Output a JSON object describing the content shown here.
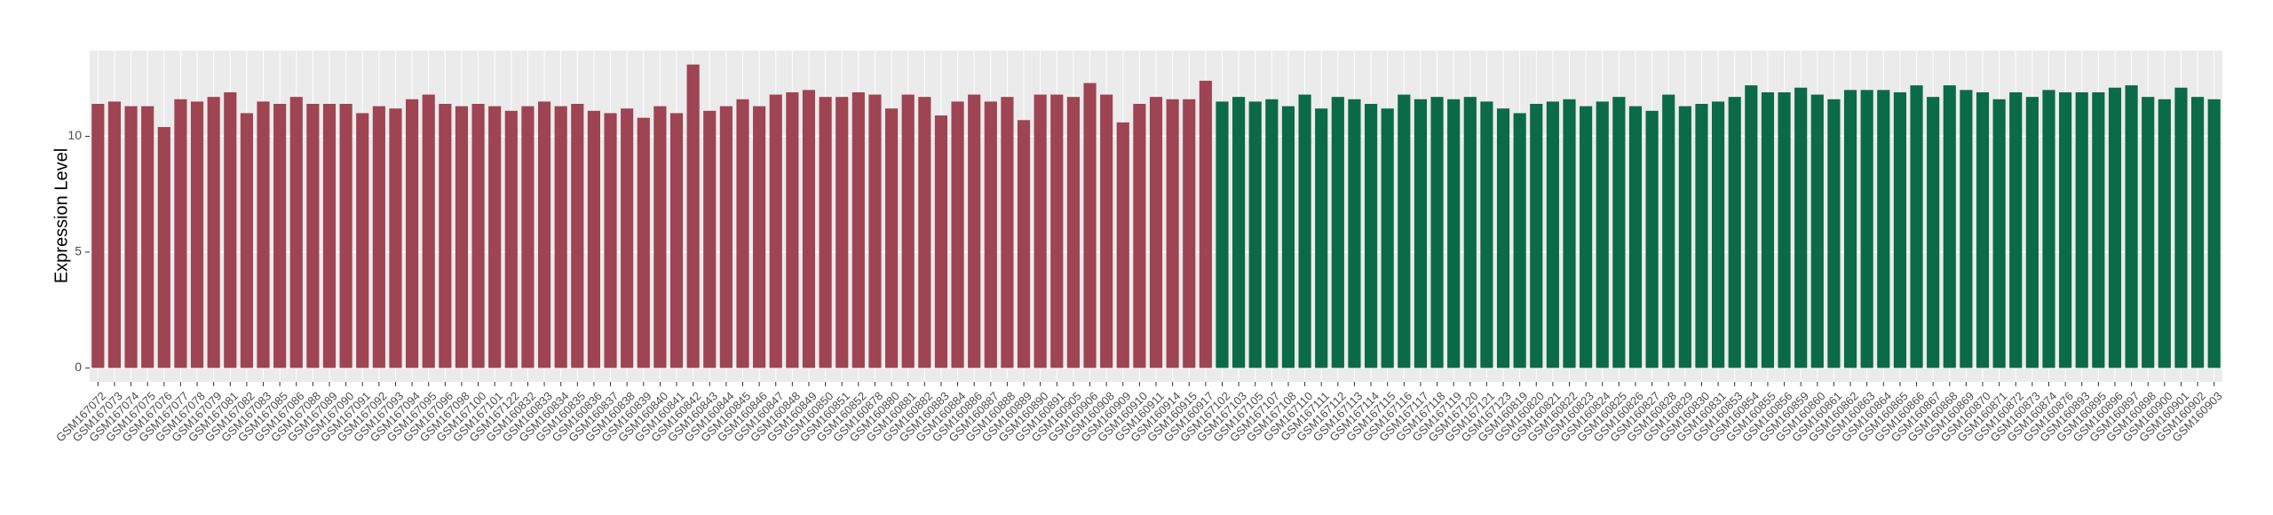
{
  "chart_data": {
    "type": "bar",
    "y_label": "Expression Level",
    "categories": [
      "GSM167072",
      "GSM167073",
      "GSM167074",
      "GSM167075",
      "GSM167076",
      "GSM167077",
      "GSM167078",
      "GSM167079",
      "GSM167081",
      "GSM167082",
      "GSM167083",
      "GSM167085",
      "GSM167086",
      "GSM167088",
      "GSM167089",
      "GSM167090",
      "GSM167091",
      "GSM167092",
      "GSM167093",
      "GSM167094",
      "GSM167095",
      "GSM167096",
      "GSM167098",
      "GSM167100",
      "GSM167101",
      "GSM167122",
      "GSM160832",
      "GSM160833",
      "GSM160834",
      "GSM160835",
      "GSM160836",
      "GSM160837",
      "GSM160838",
      "GSM160839",
      "GSM160840",
      "GSM160841",
      "GSM160842",
      "GSM160843",
      "GSM160844",
      "GSM160845",
      "GSM160846",
      "GSM160847",
      "GSM160848",
      "GSM160849",
      "GSM160850",
      "GSM160851",
      "GSM160852",
      "GSM160878",
      "GSM160880",
      "GSM160881",
      "GSM160882",
      "GSM160883",
      "GSM160884",
      "GSM160886",
      "GSM160887",
      "GSM160888",
      "GSM160889",
      "GSM160890",
      "GSM160891",
      "GSM160905",
      "GSM160906",
      "GSM160908",
      "GSM160909",
      "GSM160910",
      "GSM160911",
      "GSM160914",
      "GSM160915",
      "GSM160917",
      "GSM167102",
      "GSM167103",
      "GSM167105",
      "GSM167107",
      "GSM167108",
      "GSM167110",
      "GSM167111",
      "GSM167112",
      "GSM167113",
      "GSM167114",
      "GSM167115",
      "GSM167116",
      "GSM167117",
      "GSM167118",
      "GSM167119",
      "GSM167120",
      "GSM167121",
      "GSM167123",
      "GSM160819",
      "GSM160820",
      "GSM160821",
      "GSM160822",
      "GSM160823",
      "GSM160824",
      "GSM160825",
      "GSM160826",
      "GSM160827",
      "GSM160828",
      "GSM160829",
      "GSM160830",
      "GSM160831",
      "GSM160853",
      "GSM160854",
      "GSM160855",
      "GSM160856",
      "GSM160859",
      "GSM160860",
      "GSM160861",
      "GSM160862",
      "GSM160863",
      "GSM160864",
      "GSM160865",
      "GSM160866",
      "GSM160867",
      "GSM160868",
      "GSM160869",
      "GSM160870",
      "GSM160871",
      "GSM160872",
      "GSM160873",
      "GSM160874",
      "GSM160876",
      "GSM160893",
      "GSM160895",
      "GSM160896",
      "GSM160897",
      "GSM160898",
      "GSM160900",
      "GSM160901",
      "GSM160902",
      "GSM160903"
    ],
    "series": [
      {
        "color": "#9e4453",
        "values": [
          11.4,
          11.5,
          11.3,
          11.3,
          10.4,
          11.6,
          11.5,
          11.7,
          11.9,
          11.0,
          11.5,
          11.4,
          11.7,
          11.4,
          11.4,
          11.4,
          11.0,
          11.3,
          11.2,
          11.6,
          11.8,
          11.4,
          11.3,
          11.4,
          11.3,
          11.1,
          11.3,
          11.5,
          11.3,
          11.4,
          11.1,
          11.0,
          11.2,
          10.8,
          11.3,
          11.0,
          13.1,
          11.1,
          11.3,
          11.6,
          11.3,
          11.8,
          11.9,
          12.0,
          11.7,
          11.7,
          11.9,
          11.8,
          11.2,
          11.8,
          11.7,
          10.9,
          11.5,
          11.8,
          11.5,
          11.7,
          10.7,
          11.8,
          11.8,
          11.7,
          12.3,
          11.8,
          10.6,
          11.4,
          11.7,
          11.6,
          11.6,
          12.4,
          null,
          null,
          null,
          null,
          null,
          null,
          null,
          null,
          null,
          null,
          null,
          null,
          null,
          null,
          null,
          null,
          null,
          null,
          null,
          null,
          null,
          null,
          null,
          null,
          null,
          null,
          null,
          null,
          null,
          null,
          null,
          null,
          null,
          null,
          null,
          null,
          null,
          null,
          null,
          null,
          null,
          null,
          null,
          null,
          null,
          null,
          null,
          null,
          null,
          null,
          null,
          null,
          null,
          null,
          null,
          null,
          null,
          null,
          null,
          null,
          null
        ]
      },
      {
        "color": "#0b6a48",
        "values": [
          null,
          null,
          null,
          null,
          null,
          null,
          null,
          null,
          null,
          null,
          null,
          null,
          null,
          null,
          null,
          null,
          null,
          null,
          null,
          null,
          null,
          null,
          null,
          null,
          null,
          null,
          null,
          null,
          null,
          null,
          null,
          null,
          null,
          null,
          null,
          null,
          null,
          null,
          null,
          null,
          null,
          null,
          null,
          null,
          null,
          null,
          null,
          null,
          null,
          null,
          null,
          null,
          null,
          null,
          null,
          null,
          null,
          null,
          null,
          null,
          null,
          null,
          null,
          null,
          null,
          null,
          null,
          null,
          11.5,
          11.7,
          11.5,
          11.6,
          11.3,
          11.8,
          11.2,
          11.7,
          11.6,
          11.4,
          11.2,
          11.8,
          11.6,
          11.7,
          11.6,
          11.7,
          11.5,
          11.2,
          11.0,
          11.4,
          11.5,
          11.6,
          11.3,
          11.5,
          11.7,
          11.3,
          11.1,
          11.8,
          11.3,
          11.4,
          11.5,
          11.7,
          12.2,
          11.9,
          11.9,
          12.1,
          11.8,
          11.6,
          12.0,
          12.0,
          12.0,
          11.9,
          12.2,
          11.7,
          12.2,
          12.0,
          11.9,
          11.6,
          11.9,
          11.7,
          12.0,
          11.9,
          11.9,
          11.9,
          12.1,
          12.2,
          11.7,
          11.6,
          12.1,
          11.7,
          11.6
        ]
      }
    ],
    "ylim": [
      -0.6,
      13.7
    ],
    "yticks": [
      0,
      5,
      10
    ],
    "grid": true
  }
}
